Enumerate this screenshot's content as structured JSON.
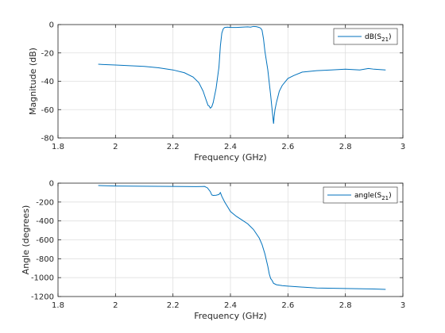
{
  "colors": {
    "line": "#0072BD",
    "grid": "#dfdfdf",
    "axis": "#262626"
  },
  "chart_data": [
    {
      "type": "line",
      "xlabel": "Frequency (GHz)",
      "ylabel": "Magnitude (dB)",
      "xlim": [
        1.8,
        3.0
      ],
      "ylim": [
        -80,
        0
      ],
      "xticks": [
        1.8,
        2.0,
        2.2,
        2.4,
        2.6,
        2.8,
        3.0
      ],
      "xtick_labels": [
        "1.8",
        "2",
        "2.2",
        "2.4",
        "2.6",
        "2.8",
        "3"
      ],
      "yticks": [
        -80,
        -60,
        -40,
        -20,
        0
      ],
      "ytick_labels": [
        "-80",
        "-60",
        "-40",
        "-20",
        "0"
      ],
      "grid": true,
      "legend_position": "top-right",
      "series": [
        {
          "name": "dB(S21)",
          "name_main": "dB(S",
          "name_sub": "21",
          "name_close": ")",
          "x": [
            1.94,
            2.0,
            2.05,
            2.1,
            2.15,
            2.2,
            2.24,
            2.27,
            2.29,
            2.305,
            2.315,
            2.322,
            2.326,
            2.33,
            2.335,
            2.34,
            2.35,
            2.36,
            2.365,
            2.37,
            2.375,
            2.38,
            2.39,
            2.4,
            2.42,
            2.44,
            2.46,
            2.47,
            2.48,
            2.49,
            2.5,
            2.505,
            2.51,
            2.515,
            2.52,
            2.53,
            2.54,
            2.545,
            2.548,
            2.55,
            2.552,
            2.555,
            2.56,
            2.57,
            2.58,
            2.6,
            2.62,
            2.65,
            2.7,
            2.75,
            2.8,
            2.85,
            2.88,
            2.9,
            2.94
          ],
          "y": [
            -28,
            -28.5,
            -29,
            -29.5,
            -30.5,
            -32,
            -34,
            -37,
            -41,
            -47,
            -53,
            -57,
            -57.5,
            -59,
            -58,
            -55,
            -45,
            -30,
            -15,
            -6,
            -3,
            -2,
            -1.8,
            -2,
            -2,
            -1.8,
            -1.6,
            -1.8,
            -1.3,
            -1.5,
            -2,
            -2.5,
            -4,
            -10,
            -19,
            -32,
            -50,
            -60,
            -66,
            -70,
            -65,
            -60,
            -55,
            -47,
            -43,
            -38,
            -36,
            -33.5,
            -32.5,
            -32,
            -31.5,
            -32,
            -31,
            -31.5,
            -32
          ]
        }
      ]
    },
    {
      "type": "line",
      "xlabel": "Frequency (GHz)",
      "ylabel": "Angle (degrees)",
      "xlim": [
        1.8,
        3.0
      ],
      "ylim": [
        -1200,
        0
      ],
      "xticks": [
        1.8,
        2.0,
        2.2,
        2.4,
        2.6,
        2.8,
        3.0
      ],
      "xtick_labels": [
        "1.8",
        "2",
        "2.2",
        "2.4",
        "2.6",
        "2.8",
        "3"
      ],
      "yticks": [
        -1200,
        -1000,
        -800,
        -600,
        -400,
        -200,
        0
      ],
      "ytick_labels": [
        "-1200",
        "-1000",
        "-800",
        "-600",
        "-400",
        "-200",
        "0"
      ],
      "grid": true,
      "legend_position": "top-right",
      "series": [
        {
          "name": "angle(S21)",
          "name_main": "angle(S",
          "name_sub": "21",
          "name_close": ")",
          "x": [
            1.94,
            2.0,
            2.1,
            2.2,
            2.28,
            2.31,
            2.32,
            2.33,
            2.335,
            2.34,
            2.35,
            2.36,
            2.365,
            2.37,
            2.38,
            2.39,
            2.4,
            2.42,
            2.44,
            2.46,
            2.48,
            2.5,
            2.51,
            2.52,
            2.53,
            2.535,
            2.54,
            2.545,
            2.55,
            2.56,
            2.58,
            2.6,
            2.65,
            2.7,
            2.8,
            2.9,
            2.94
          ],
          "y": [
            -25,
            -30,
            -33,
            -35,
            -37,
            -35,
            -50,
            -90,
            -125,
            -130,
            -128,
            -120,
            -100,
            -140,
            -200,
            -250,
            -300,
            -350,
            -390,
            -430,
            -490,
            -580,
            -650,
            -750,
            -880,
            -960,
            -1010,
            -1030,
            -1060,
            -1075,
            -1085,
            -1090,
            -1100,
            -1110,
            -1115,
            -1120,
            -1125
          ]
        }
      ]
    }
  ]
}
